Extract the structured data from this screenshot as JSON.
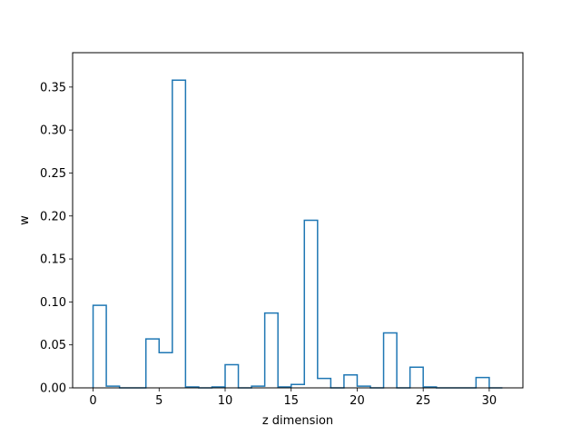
{
  "chart_data": {
    "type": "step",
    "title": "",
    "xlabel": "z dimension",
    "ylabel": "w",
    "xlim": [
      -1.55,
      32.55
    ],
    "ylim": [
      0.0,
      0.39
    ],
    "xticks": [
      0,
      5,
      10,
      15,
      20,
      25,
      30
    ],
    "yticks": [
      0.0,
      0.05,
      0.1,
      0.15,
      0.2,
      0.25,
      0.3,
      0.35
    ],
    "series": [
      {
        "color": "#1f77b4",
        "bin_edges": [
          0,
          1,
          2,
          3,
          4,
          5,
          6,
          7,
          8,
          9,
          10,
          11,
          12,
          13,
          14,
          15,
          16,
          17,
          18,
          19,
          20,
          21,
          22,
          23,
          24,
          25,
          26,
          27,
          28,
          29,
          30,
          31
        ],
        "values": [
          0.096,
          0.002,
          0.0,
          0.0,
          0.057,
          0.041,
          0.358,
          0.001,
          0.0,
          0.001,
          0.027,
          0.0,
          0.002,
          0.087,
          0.001,
          0.004,
          0.195,
          0.011,
          0.0,
          0.015,
          0.002,
          0.0,
          0.064,
          0.0,
          0.024,
          0.001,
          0.0,
          0.0,
          0.0,
          0.012,
          0.0
        ]
      }
    ]
  }
}
